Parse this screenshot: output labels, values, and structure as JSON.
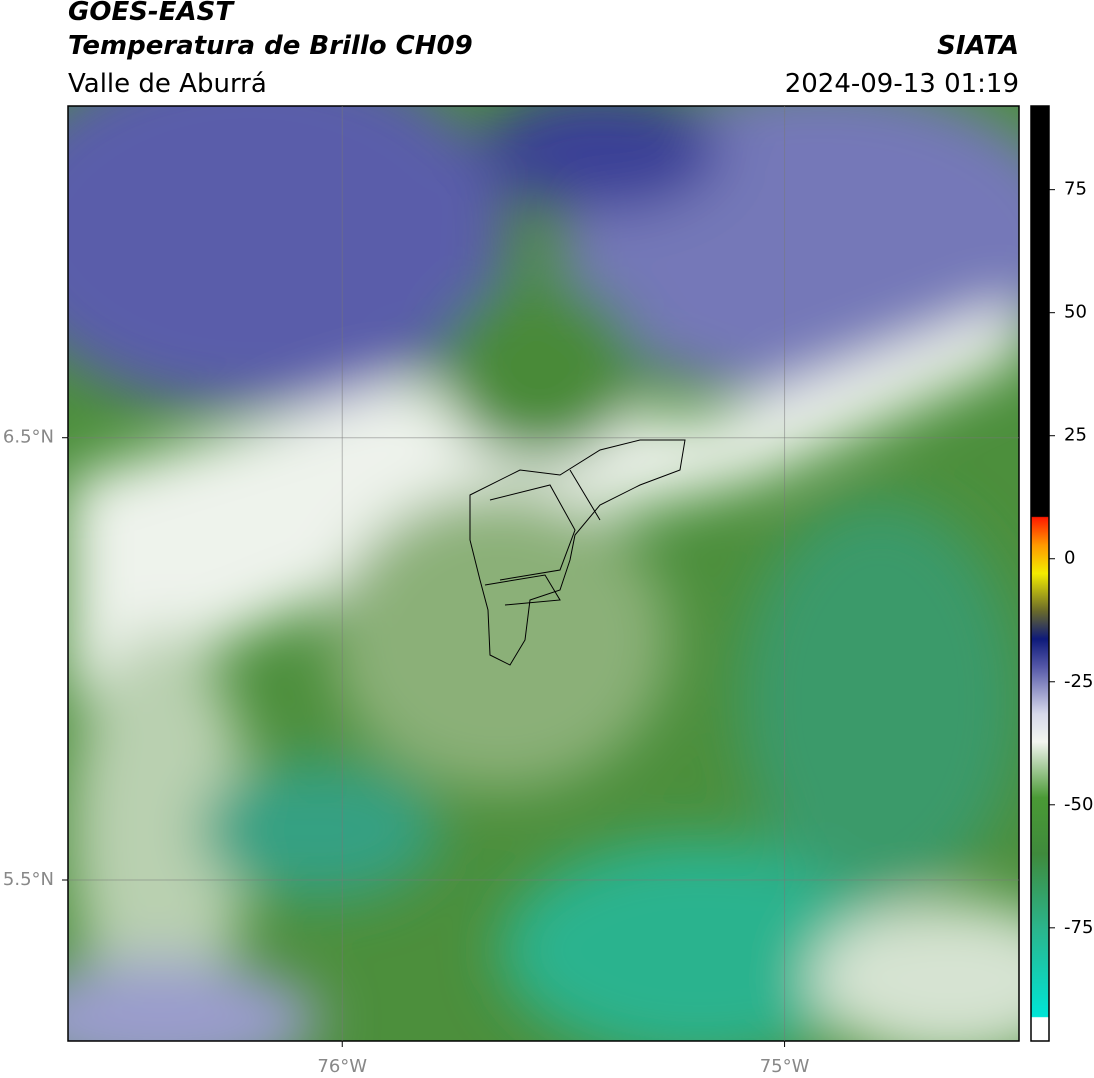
{
  "header": {
    "title": "GOES-EAST",
    "subtitle": "Temperatura de Brillo CH09",
    "region": "Valle de Aburrá",
    "source": "SIATA",
    "timestamp": "2024-09-13 01:19"
  },
  "map": {
    "xlim": [
      -76.62,
      -74.47
    ],
    "ylim": [
      5.136,
      7.25
    ],
    "xticks": [
      {
        "value": -76,
        "label": "76°W"
      },
      {
        "value": -75,
        "label": "75°W"
      }
    ],
    "yticks": [
      {
        "value": 6.5,
        "label": "6.5°N"
      },
      {
        "value": 5.5,
        "label": "5.5°N"
      }
    ],
    "grid": true
  },
  "colorbar": {
    "lim": [
      -98,
      92
    ],
    "ticks": [
      75,
      50,
      25,
      0,
      -25,
      -50,
      -75
    ]
  }
}
